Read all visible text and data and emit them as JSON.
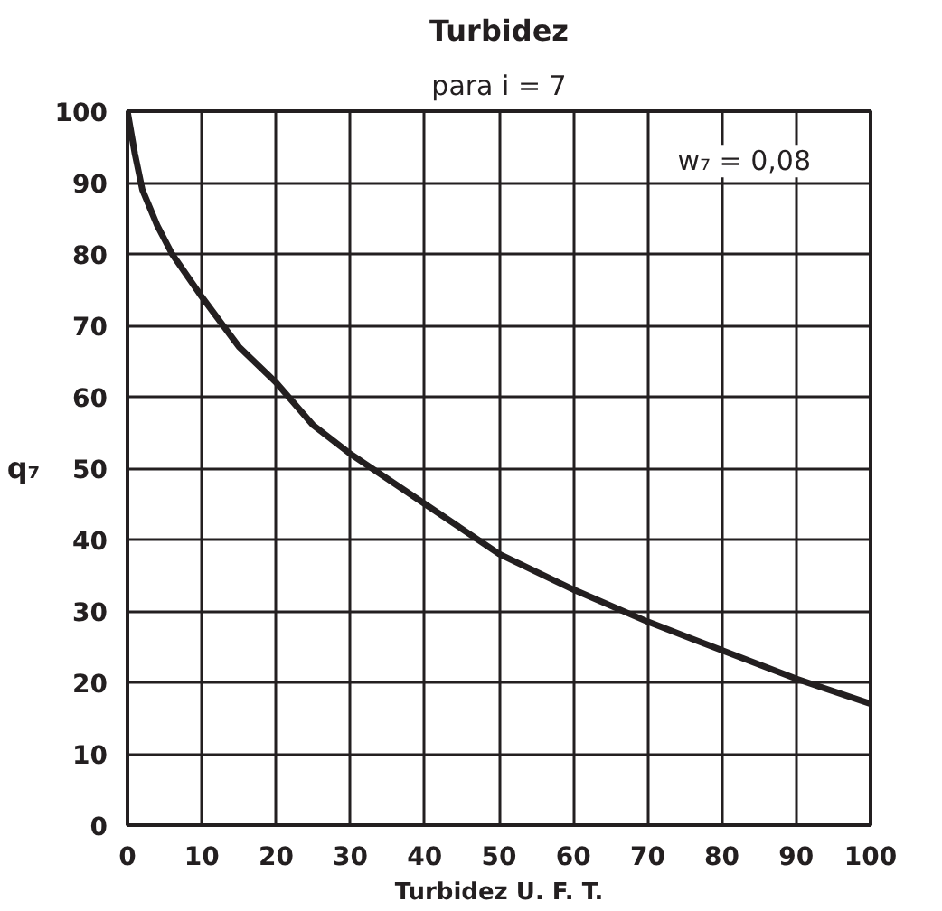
{
  "chart_data": {
    "type": "line",
    "title": "Turbidez",
    "subtitle": "para i = 7",
    "xlabel": "Turbidez U. F. T.",
    "ylabel": "q₇",
    "x": [
      0,
      1,
      2,
      4,
      6,
      10,
      15,
      20,
      25,
      30,
      40,
      50,
      60,
      70,
      80,
      90,
      100
    ],
    "series": [
      {
        "color": "#231f20",
        "values": [
          100,
          94,
          89,
          84,
          80,
          74,
          67,
          62,
          56,
          52,
          45,
          38,
          33,
          28.5,
          24.5,
          20.5,
          17
        ]
      }
    ],
    "xlim": [
      0,
      100
    ],
    "ylim": [
      0,
      100
    ],
    "xticks": [
      0,
      10,
      20,
      30,
      40,
      50,
      60,
      70,
      80,
      90,
      100
    ],
    "yticks": [
      0,
      10,
      20,
      30,
      40,
      50,
      60,
      70,
      80,
      90,
      100
    ],
    "grid": true,
    "marker": "none",
    "line_style": "solid",
    "annotations": [
      "w₇ = 0,08"
    ]
  }
}
